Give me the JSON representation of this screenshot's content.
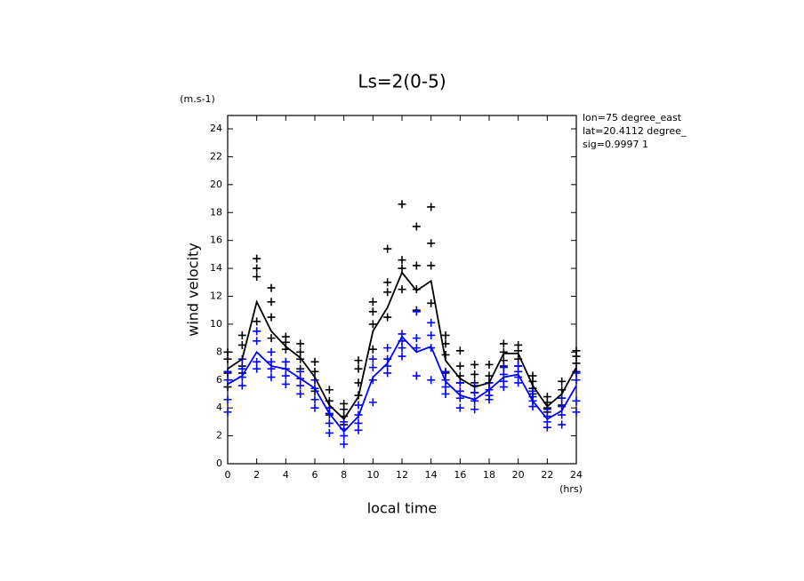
{
  "chart_data": {
    "type": "line",
    "title": "Ls=2(0-5)",
    "y_unit": "(m.s-1)",
    "x_unit": "(hrs)",
    "xlabel": "local time",
    "ylabel": "wind velocity",
    "annotations": [
      "lon=75 degree_east",
      "lat=20.4112 degree_",
      "sig=0.9997 1"
    ],
    "x": [
      0,
      1,
      2,
      3,
      4,
      5,
      6,
      7,
      8,
      9,
      10,
      11,
      12,
      13,
      14,
      15,
      16,
      17,
      18,
      19,
      20,
      21,
      22,
      23,
      24
    ],
    "series": [
      {
        "color": "#000000",
        "values": [
          6.8,
          7.5,
          11.6,
          9.5,
          8.4,
          7.6,
          6.2,
          4.2,
          3.2,
          4.8,
          9.5,
          11.2,
          13.7,
          12.4,
          13.1,
          7.4,
          6.1,
          5.5,
          5.8,
          7.9,
          7.9,
          5.6,
          4.1,
          5.0,
          6.9
        ]
      },
      {
        "color": "#0000ff",
        "values": [
          5.7,
          6.3,
          8.0,
          7.0,
          6.8,
          6.1,
          5.4,
          3.6,
          2.3,
          3.4,
          6.2,
          7.2,
          9.1,
          8.0,
          8.4,
          5.9,
          4.9,
          4.6,
          5.3,
          6.2,
          6.4,
          4.5,
          3.2,
          3.8,
          5.6
        ]
      }
    ],
    "scatter": [
      {
        "color": "#000000",
        "x": [
          0,
          0,
          0,
          0,
          1,
          1,
          1,
          1,
          2,
          2,
          2,
          2,
          3,
          3,
          3,
          3,
          4,
          4,
          4,
          4,
          5,
          5,
          5,
          5,
          6,
          6,
          6,
          6,
          7,
          7,
          7,
          7,
          8,
          8,
          8,
          8,
          9,
          9,
          9,
          9,
          10,
          10,
          10,
          10,
          11,
          11,
          11,
          11,
          12,
          12,
          12,
          12,
          13,
          13,
          13,
          13,
          14,
          14,
          14,
          14,
          15,
          15,
          15,
          15,
          16,
          16,
          16,
          16,
          17,
          17,
          17,
          17,
          18,
          18,
          18,
          18,
          19,
          19,
          19,
          19,
          20,
          20,
          20,
          20,
          21,
          21,
          21,
          21,
          22,
          22,
          22,
          22,
          23,
          23,
          23,
          23,
          24,
          24,
          24,
          24
        ],
        "values": [
          8.0,
          7.5,
          6.5,
          5.5,
          9.2,
          8.5,
          7.0,
          6.5,
          14.7,
          14.0,
          13.4,
          10.2,
          12.6,
          11.6,
          10.5,
          9.0,
          9.1,
          8.7,
          8.2,
          7.3,
          8.6,
          8.0,
          7.5,
          6.8,
          7.3,
          6.6,
          6.0,
          5.2,
          5.3,
          4.5,
          4.0,
          3.5,
          4.3,
          3.9,
          3.4,
          2.8,
          7.4,
          6.8,
          5.8,
          4.9,
          11.6,
          10.9,
          10.0,
          8.2,
          15.4,
          13.0,
          12.3,
          10.5,
          18.6,
          14.6,
          14.0,
          12.5,
          17.0,
          14.2,
          12.5,
          11.0,
          18.4,
          15.8,
          14.2,
          11.5,
          9.2,
          8.6,
          7.8,
          6.5,
          8.1,
          7.0,
          6.3,
          5.8,
          7.1,
          6.4,
          5.8,
          5.1,
          7.1,
          6.3,
          5.8,
          5.3,
          8.6,
          8.0,
          7.4,
          7.0,
          8.5,
          8.1,
          7.5,
          7.0,
          6.3,
          5.9,
          5.4,
          5.0,
          4.8,
          4.4,
          4.0,
          3.7,
          5.9,
          5.3,
          4.7,
          4.2,
          8.1,
          7.7,
          7.2,
          6.6
        ]
      },
      {
        "color": "#0000ff",
        "x": [
          0,
          0,
          0,
          0,
          1,
          1,
          1,
          1,
          2,
          2,
          2,
          2,
          3,
          3,
          3,
          3,
          4,
          4,
          4,
          4,
          5,
          5,
          5,
          5,
          6,
          6,
          6,
          6,
          7,
          7,
          7,
          7,
          8,
          8,
          8,
          8,
          9,
          9,
          9,
          9,
          10,
          10,
          10,
          10,
          11,
          11,
          11,
          11,
          12,
          12,
          12,
          12,
          13,
          13,
          13,
          13,
          14,
          14,
          14,
          14,
          15,
          15,
          15,
          15,
          16,
          16,
          16,
          16,
          17,
          17,
          17,
          17,
          18,
          18,
          18,
          18,
          19,
          19,
          19,
          19,
          20,
          20,
          20,
          20,
          21,
          21,
          21,
          21,
          22,
          22,
          22,
          22,
          23,
          23,
          23,
          23,
          24,
          24,
          24,
          24
        ],
        "values": [
          6.6,
          6.0,
          4.6,
          3.7,
          7.5,
          6.8,
          6.2,
          5.6,
          9.5,
          8.8,
          7.3,
          6.8,
          8.0,
          7.3,
          6.8,
          6.2,
          7.3,
          6.8,
          6.3,
          5.7,
          6.6,
          6.1,
          5.6,
          5.0,
          6.0,
          5.4,
          4.6,
          4.0,
          4.0,
          3.6,
          2.9,
          2.2,
          3.0,
          2.5,
          2.0,
          1.4,
          4.2,
          3.5,
          2.9,
          2.4,
          7.5,
          6.9,
          6.0,
          4.4,
          8.3,
          7.5,
          7.0,
          6.5,
          9.3,
          8.8,
          8.3,
          7.7,
          10.9,
          9.0,
          8.3,
          6.3,
          10.1,
          9.2,
          8.3,
          6.0,
          6.6,
          6.0,
          5.5,
          5.0,
          5.8,
          5.2,
          4.7,
          4.0,
          5.6,
          5.1,
          4.5,
          3.9,
          5.8,
          5.3,
          4.9,
          4.6,
          6.9,
          6.4,
          5.9,
          5.5,
          7.0,
          6.6,
          6.2,
          5.8,
          5.2,
          4.8,
          4.5,
          4.1,
          3.9,
          3.4,
          3.0,
          2.6,
          4.7,
          4.1,
          3.5,
          2.8,
          6.5,
          6.0,
          4.5,
          3.7
        ]
      }
    ],
    "xlim": [
      0,
      24
    ],
    "xticks": [
      0,
      2,
      4,
      6,
      8,
      10,
      12,
      14,
      16,
      18,
      20,
      22,
      24
    ],
    "ylim": [
      0,
      24
    ],
    "yticks": [
      0,
      2,
      4,
      6,
      8,
      10,
      12,
      14,
      16,
      18,
      20,
      22,
      24
    ],
    "grid": false
  }
}
